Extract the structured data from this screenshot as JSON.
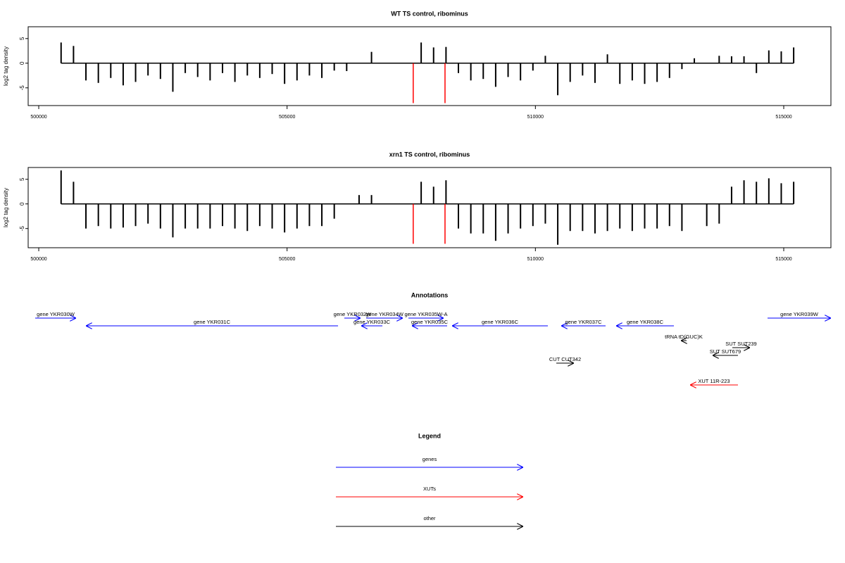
{
  "chart_data": [
    {
      "type": "bar",
      "title": "WT TS control, ribominus",
      "y_label": "log2 tag density",
      "x": [
        500450,
        500700,
        500950,
        501200,
        501450,
        501700,
        501950,
        502200,
        502450,
        502700,
        502950,
        503200,
        503450,
        503700,
        503950,
        504200,
        504450,
        504700,
        504950,
        505200,
        505450,
        505700,
        505950,
        506200,
        506450,
        506700,
        506950,
        507200,
        507450,
        507700,
        507950,
        508200,
        508450,
        508700,
        508950,
        509200,
        509450,
        509700,
        509950,
        510200,
        510450,
        510700,
        510950,
        511200,
        511450,
        511700,
        511950,
        512200,
        512450,
        512700,
        512950,
        513200,
        513450,
        513700,
        513950,
        514200,
        514450,
        514700,
        514950,
        515200
      ],
      "values": [
        4.2,
        3.5,
        -3.5,
        -4,
        -3,
        -4.5,
        -3.8,
        -2.5,
        -3.2,
        -5.8,
        -2,
        -2.8,
        -3.5,
        -2,
        -3.8,
        -2.5,
        -3,
        -2.2,
        -4.2,
        -3.5,
        -2.5,
        -3,
        -1.5,
        -1.6,
        0,
        2.3,
        0,
        0,
        0,
        4.2,
        3.2,
        3.3,
        -2,
        -3.5,
        -3.2,
        -4.8,
        -2.8,
        -3.5,
        -1.5,
        1.5,
        -6.5,
        -3.8,
        -2.5,
        -4,
        1.8,
        -4.2,
        -3.5,
        -4.2,
        -3.8,
        -3,
        -1.2,
        1,
        0,
        1.5,
        1.4,
        1.4,
        -2,
        2.6,
        2.4,
        3.2
      ],
      "color": "#000000",
      "xlim": [
        499787,
        515950
      ],
      "ylim": [
        -8.6,
        7.4
      ],
      "xticks": [
        500000,
        505000,
        510000,
        515000
      ],
      "yticks": [
        -5,
        0,
        5
      ],
      "markers": [
        507540,
        508180
      ],
      "marker_color": "#ff0000",
      "marker_bottom": -8.1
    },
    {
      "type": "bar",
      "title": "xrn1 TS control, ribominus",
      "y_label": "log2 tag density",
      "x": [
        500450,
        500700,
        500950,
        501200,
        501450,
        501700,
        501950,
        502200,
        502450,
        502700,
        502950,
        503200,
        503450,
        503700,
        503950,
        504200,
        504450,
        504700,
        504950,
        505200,
        505450,
        505700,
        505950,
        506200,
        506450,
        506700,
        506950,
        507200,
        507450,
        507700,
        507950,
        508200,
        508450,
        508700,
        508950,
        509200,
        509450,
        509700,
        509950,
        510200,
        510450,
        510700,
        510950,
        511200,
        511450,
        511700,
        511950,
        512200,
        512450,
        512700,
        512950,
        513200,
        513450,
        513700,
        513950,
        514200,
        514450,
        514700,
        514950,
        515200
      ],
      "values": [
        6.8,
        4.5,
        -5,
        -4.5,
        -5,
        -4.8,
        -4.5,
        -4,
        -5,
        -6.8,
        -5,
        -5,
        -5,
        -4.5,
        -5,
        -5.5,
        -4.5,
        -5,
        -5.8,
        -5,
        -4.5,
        -4.5,
        -3,
        0,
        1.8,
        1.8,
        0,
        0,
        0,
        4.5,
        3.5,
        4.8,
        -5,
        -6,
        -6,
        -7.5,
        -6,
        -5,
        -4.5,
        -4,
        -8.3,
        -5.5,
        -5.5,
        -6,
        -5.5,
        -5,
        -5.5,
        -5,
        -5,
        -4.5,
        -5.5,
        0,
        -4.5,
        -4,
        3.5,
        4.8,
        4.5,
        5.2,
        4.2,
        4.5
      ],
      "color": "#000000",
      "xlim": [
        499787,
        515950
      ],
      "ylim": [
        -8.9,
        7.4
      ],
      "xticks": [
        500000,
        505000,
        510000,
        515000
      ],
      "yticks": [
        -5,
        0,
        5
      ],
      "markers": [
        507540,
        508180
      ],
      "marker_color": "#ff0000",
      "marker_bottom": -8.1
    }
  ],
  "annotations": {
    "title": "Annotations",
    "features": [
      {
        "label": "gene YKR030W",
        "start": 499929,
        "end": 500751,
        "color": "#0000ff"
      },
      {
        "label": "gene YKR031C",
        "start": 506026,
        "end": 500950,
        "color": "#0000ff"
      },
      {
        "label": "gene YKR032W",
        "start": 506153,
        "end": 506479,
        "color": "#0000ff"
      },
      {
        "label": "gene YKR034W",
        "start": 506593,
        "end": 507330,
        "color": "#0000ff"
      },
      {
        "label": "gene YKR033C",
        "start": 506919,
        "end": 506494,
        "color": "#0000ff"
      },
      {
        "label": "gene YKR035W-A",
        "start": 507443,
        "end": 508152,
        "color": "#0000ff"
      },
      {
        "label": "gene YKR035C",
        "start": 508223,
        "end": 507514,
        "color": "#0000ff"
      },
      {
        "label": "gene YKR036C",
        "start": 510251,
        "end": 508322,
        "color": "#0000ff"
      },
      {
        "label": "gene YKR037C",
        "start": 511413,
        "end": 510520,
        "color": "#0000ff"
      },
      {
        "label": "gene YKR038C",
        "start": 512788,
        "end": 511626,
        "color": "#0000ff"
      },
      {
        "label": "gene YKR039W",
        "start": 514674,
        "end": 515950,
        "color": "#0000ff"
      },
      {
        "label": "tRNA tD(GUC)K",
        "start": 513044,
        "end": 512930,
        "color": "#000000"
      },
      {
        "label": "SUT SUT239",
        "start": 513965,
        "end": 514320,
        "color": "#000000"
      },
      {
        "label": "SUT SUT679",
        "start": 514078,
        "end": 513568,
        "color": "#000000"
      },
      {
        "label": "CUT CUT342",
        "start": 510421,
        "end": 510775,
        "color": "#000000"
      },
      {
        "label": "XUT 11R-223",
        "start": 514078,
        "end": 513114,
        "color": "#ff0000"
      }
    ]
  },
  "legend": {
    "title": "Legend",
    "items": [
      {
        "label": "genes",
        "color": "#0000ff"
      },
      {
        "label": "XUTs",
        "color": "#ff0000"
      },
      {
        "label": "other",
        "color": "#000000"
      }
    ]
  }
}
